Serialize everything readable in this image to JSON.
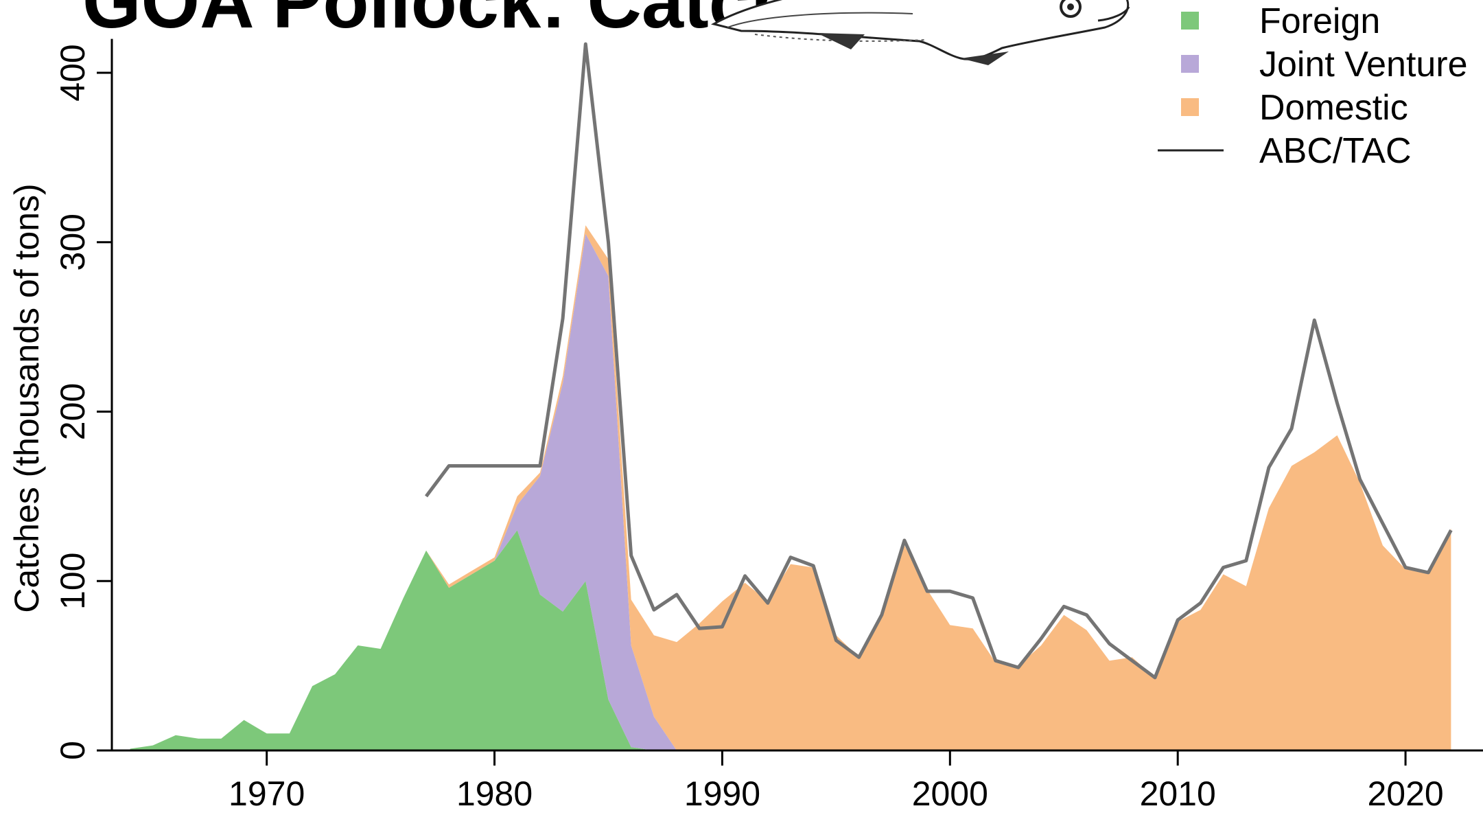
{
  "chart_data": {
    "type": "area",
    "title": "GOA Pollock: Catch",
    "ylabel": "Catches (thousands of tons)",
    "xlabel": "",
    "xlim": [
      1963,
      1965.5
    ],
    "ylim": [
      0,
      430
    ],
    "x_ticks": [
      1970,
      1980,
      1990,
      2000,
      2010,
      2020
    ],
    "y_ticks": [
      0,
      100,
      200,
      300,
      400
    ],
    "legend_position": "top-right",
    "years": [
      1964,
      1965,
      1966,
      1967,
      1968,
      1969,
      1970,
      1971,
      1972,
      1973,
      1974,
      1975,
      1976,
      1977,
      1978,
      1979,
      1980,
      1981,
      1982,
      1983,
      1984,
      1985,
      1986,
      1987,
      1988,
      1989,
      1990,
      1991,
      1992,
      1993,
      1994,
      1995,
      1996,
      1997,
      1998,
      1999,
      2000,
      2001,
      2002,
      2003,
      2004,
      2005,
      2006,
      2007,
      2008,
      2009,
      2010,
      2011,
      2012,
      2013,
      2014,
      2015,
      2016,
      2017,
      2018,
      2019,
      2020,
      2021,
      2022
    ],
    "series": [
      {
        "name": "Foreign",
        "color": "#7dc87a",
        "values": [
          1,
          3,
          9,
          7,
          7,
          18,
          10,
          10,
          38,
          45,
          62,
          60,
          90,
          118,
          96,
          104,
          112,
          130,
          92,
          82,
          100,
          30,
          2,
          0,
          0,
          0,
          0,
          0,
          0,
          0,
          0,
          0,
          0,
          0,
          0,
          0,
          0,
          0,
          0,
          0,
          0,
          0,
          0,
          0,
          0,
          0,
          0,
          0,
          0,
          0,
          0,
          0,
          0,
          0,
          0,
          0,
          0,
          0,
          0
        ]
      },
      {
        "name": "Joint Venture",
        "color": "#b8a8d8",
        "values": [
          0,
          0,
          0,
          0,
          0,
          0,
          0,
          0,
          0,
          0,
          0,
          0,
          0,
          0,
          0,
          0,
          0,
          15,
          70,
          135,
          205,
          250,
          60,
          20,
          0,
          0,
          0,
          0,
          0,
          0,
          0,
          0,
          0,
          0,
          0,
          0,
          0,
          0,
          0,
          0,
          0,
          0,
          0,
          0,
          0,
          0,
          0,
          0,
          0,
          0,
          0,
          0,
          0,
          0,
          0,
          0,
          0,
          0,
          0
        ]
      },
      {
        "name": "Domestic",
        "color": "#f9bb82",
        "values": [
          0,
          0,
          0,
          0,
          0,
          0,
          0,
          0,
          0,
          0,
          0,
          0,
          0,
          0,
          2,
          2,
          2,
          5,
          2,
          4,
          5,
          10,
          27,
          48,
          64,
          75,
          88,
          99,
          88,
          110,
          108,
          68,
          55,
          80,
          121,
          95,
          74,
          72,
          52,
          50,
          62,
          80,
          71,
          53,
          55,
          43,
          76,
          83,
          104,
          97,
          143,
          168,
          176,
          186,
          158,
          121,
          107,
          104,
          131
        ]
      },
      {
        "name": "ABC/TAC",
        "color": "#747474",
        "start_year": 1977,
        "values": [
          150,
          168,
          168,
          168,
          168,
          168,
          255,
          417,
          300,
          115,
          83,
          92,
          72,
          73,
          103,
          87,
          114,
          109,
          65,
          55,
          80,
          124,
          94,
          94,
          90,
          53,
          49,
          66,
          85,
          80,
          63,
          53,
          43,
          77,
          87,
          108,
          112,
          167,
          190,
          254,
          205,
          160,
          134,
          108,
          105,
          130
        ]
      }
    ]
  },
  "legend": {
    "items": [
      {
        "label": "Foreign",
        "color": "#7dc87a",
        "kind": "box"
      },
      {
        "label": "Joint Venture",
        "color": "#b8a8d8",
        "kind": "box"
      },
      {
        "label": "Domestic",
        "color": "#f9bb82",
        "kind": "box"
      },
      {
        "label": "ABC/TAC",
        "color": "#222222",
        "kind": "line"
      }
    ]
  },
  "decor": {
    "fish_icon": "pollock-fish-illustration"
  }
}
